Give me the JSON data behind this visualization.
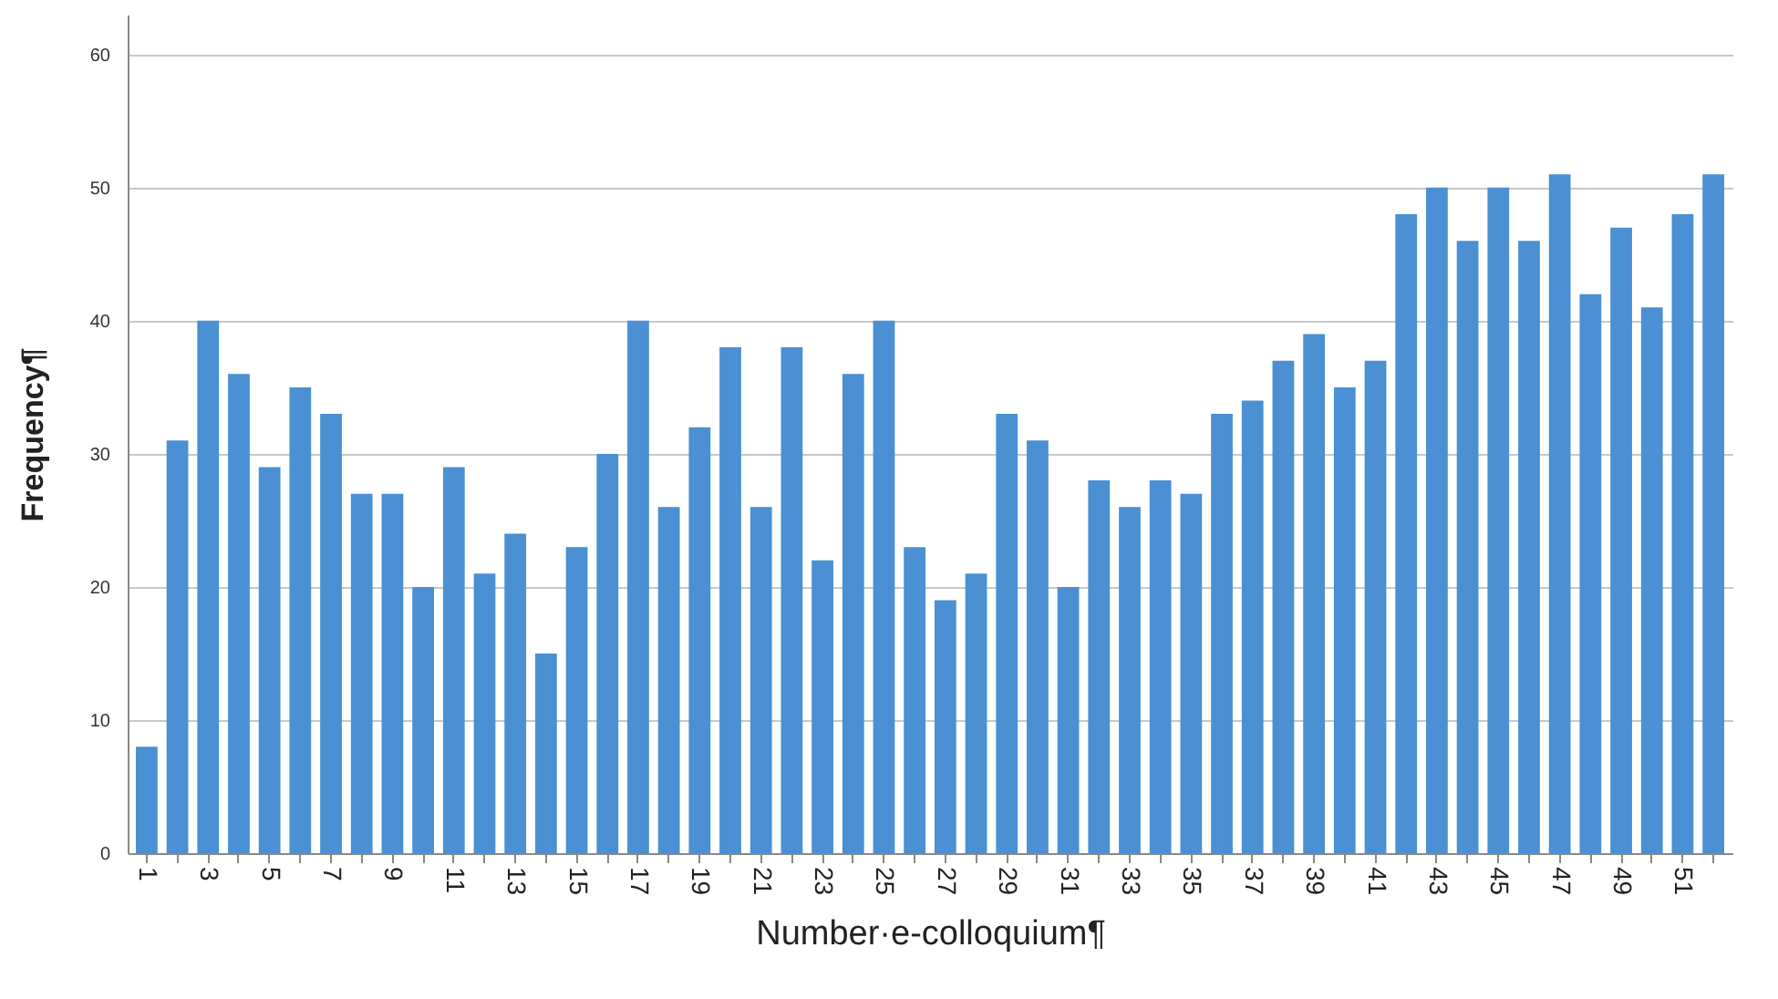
{
  "chart_data": {
    "type": "bar",
    "xlabel": "Number·e-colloquium¶",
    "ylabel": "Frequency¶",
    "categories": [
      "1",
      null,
      "3",
      null,
      "5",
      null,
      "7",
      null,
      "9",
      null,
      "11",
      null,
      "13",
      null,
      "15",
      null,
      "17",
      null,
      "19",
      null,
      "21",
      null,
      "23",
      null,
      "25",
      null,
      "27",
      null,
      "29",
      null,
      "31",
      null,
      "33",
      null,
      "35",
      null,
      "37",
      null,
      "39",
      null,
      "41",
      null,
      "43",
      null,
      "45",
      null,
      "47",
      null,
      "49",
      null,
      "51",
      null
    ],
    "values": [
      8,
      31,
      40,
      36,
      29,
      35,
      33,
      27,
      27,
      20,
      29,
      21,
      24,
      15,
      23,
      30,
      40,
      26,
      32,
      38,
      26,
      38,
      22,
      36,
      40,
      23,
      19,
      21,
      33,
      31,
      20,
      28,
      26,
      28,
      27,
      33,
      34,
      37,
      39,
      35,
      37,
      48,
      50,
      46,
      50,
      46,
      51,
      42,
      47,
      41,
      48,
      51
    ],
    "color": "#4a90d2",
    "ylim": [
      0,
      63
    ],
    "yticks": [
      0,
      10,
      20,
      30,
      40,
      50,
      60
    ],
    "grid": "y"
  }
}
